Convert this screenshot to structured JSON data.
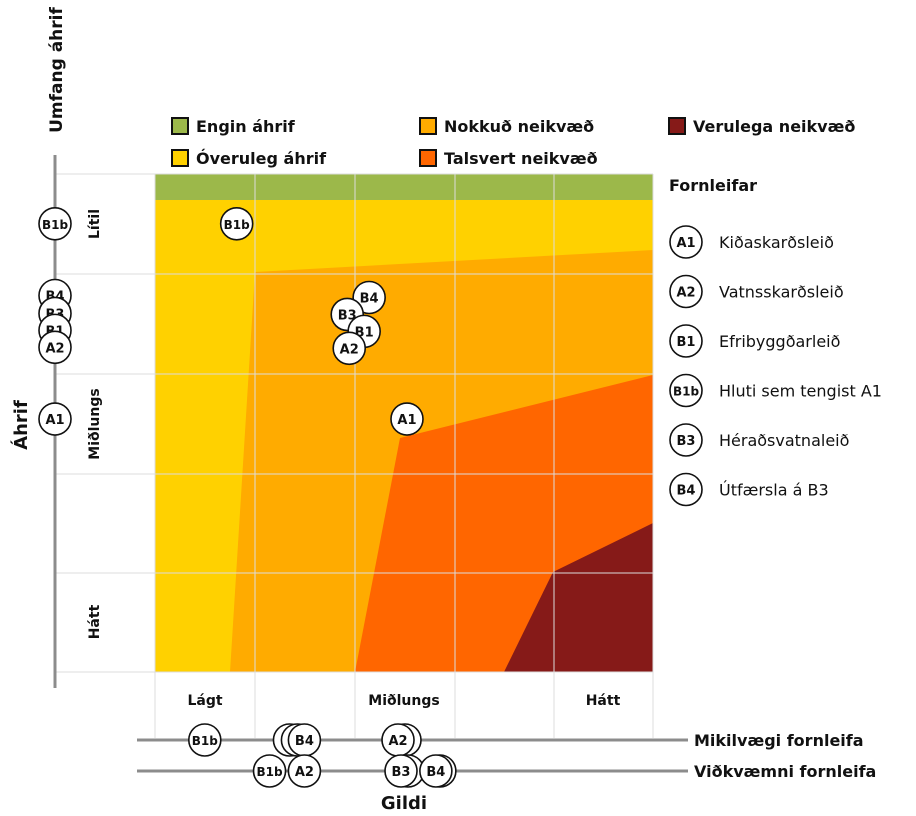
{
  "labels": {
    "y_axis_top": "Umfang áhrif",
    "y_axis_main": "Áhrif",
    "x_axis_main": "Gildi",
    "legend_title": "Fornleifar"
  },
  "legend": [
    {
      "id": "engin",
      "label": "Engin áhrif",
      "color": "#9cb84a"
    },
    {
      "id": "overuleg",
      "label": "Óveruleg áhrif",
      "color": "#ffd100"
    },
    {
      "id": "nokkud",
      "label": "Nokkuð neikvæð",
      "color": "#ffab00"
    },
    {
      "id": "talsvert",
      "label": "Talsvert neikvæð",
      "color": "#ff6600"
    },
    {
      "id": "verulega",
      "label": "Verulega neikvæð",
      "color": "#861a18"
    }
  ],
  "chart_data": {
    "type": "scatter",
    "x_categories": [
      "Lágt",
      "Miðlungs",
      "Hátt"
    ],
    "y_categories": [
      "Lítil",
      "Miðlungs",
      "Hátt"
    ],
    "xlim": [
      0,
      5
    ],
    "ylim": [
      0,
      5
    ],
    "y_axis_points": [
      {
        "code": "B1b",
        "y": 0.5
      },
      {
        "code": "B4",
        "y": 1.22
      },
      {
        "code": "B3",
        "y": 1.4
      },
      {
        "code": "B1",
        "y": 1.57
      },
      {
        "code": "A2",
        "y": 1.74
      },
      {
        "code": "A1",
        "y": 2.46
      }
    ],
    "points": [
      {
        "code": "B1b",
        "x": 0.82,
        "y": 0.5
      },
      {
        "code": "B4",
        "x": 2.15,
        "y": 1.24
      },
      {
        "code": "B3",
        "x": 1.93,
        "y": 1.41
      },
      {
        "code": "B1",
        "x": 2.1,
        "y": 1.58
      },
      {
        "code": "A2",
        "x": 1.95,
        "y": 1.75
      },
      {
        "code": "A1",
        "x": 2.53,
        "y": 2.46
      }
    ],
    "mikilvaegi_points": [
      {
        "code": "B1b",
        "x": 0.5
      },
      {
        "code": "",
        "x": 1.35
      },
      {
        "code": "",
        "x": 1.43
      },
      {
        "code": "B4",
        "x": 1.5
      },
      {
        "code": "",
        "x": 2.51
      },
      {
        "code": "A2",
        "x": 2.44
      }
    ],
    "vidkvaemni_points": [
      {
        "code": "B1b",
        "x": 1.15
      },
      {
        "code": "A2",
        "x": 1.5
      },
      {
        "code": "",
        "x": 2.54
      },
      {
        "code": "B3",
        "x": 2.47
      },
      {
        "code": "",
        "x": 2.86
      },
      {
        "code": "B4",
        "x": 2.82
      }
    ]
  },
  "fornleifar": [
    {
      "code": "A1",
      "name": "Kiðaskarðsleið"
    },
    {
      "code": "A2",
      "name": "Vatnsskarðsleið"
    },
    {
      "code": "B1",
      "name": "Efribyggðarleið"
    },
    {
      "code": "B1b",
      "name": "Hluti sem tengist A1"
    },
    {
      "code": "B3",
      "name": "Héraðsvatnaleið"
    },
    {
      "code": "B4",
      "name": "Útfærsla á B3"
    }
  ],
  "scale_labels": {
    "mikilvaegi": "Mikilvægi fornleifa",
    "vidkvaemni": "Viðkvæmni fornleifa"
  }
}
